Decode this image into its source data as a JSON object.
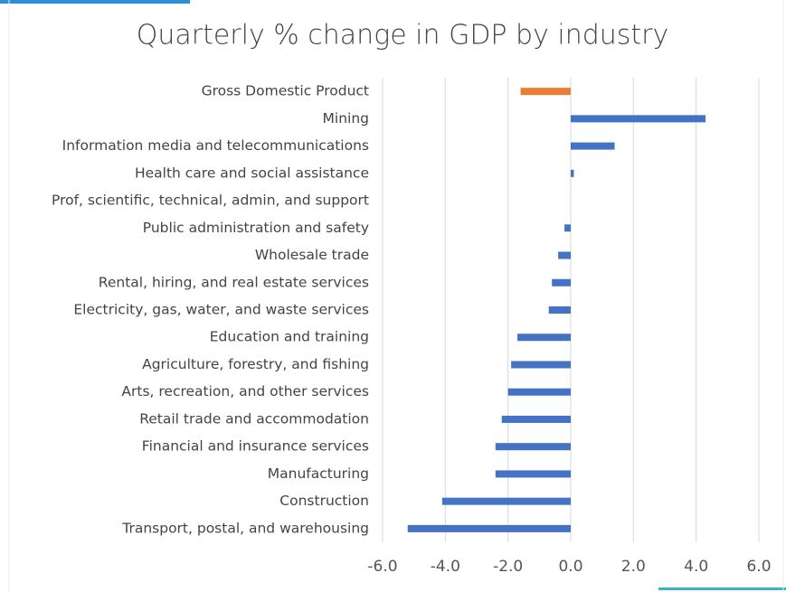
{
  "chart_data": {
    "type": "barh",
    "title": "Quarterly % change in GDP by industry",
    "categories": [
      "Gross Domestic Product",
      "Mining",
      "Information media and telecommunications",
      "Health care and social assistance",
      "Prof, scientific, technical, admin, and support",
      "Public administration and safety",
      "Wholesale trade",
      "Rental, hiring, and real estate services",
      "Electricity, gas, water, and waste services",
      "Education and training",
      "Agriculture, forestry, and fishing",
      "Arts, recreation, and other services",
      "Retail trade and accommodation",
      "Financial and insurance services",
      "Manufacturing",
      "Construction",
      "Transport, postal, and warehousing"
    ],
    "values": [
      -1.6,
      4.3,
      1.4,
      0.1,
      0.0,
      -0.2,
      -0.4,
      -0.6,
      -0.7,
      -1.7,
      -1.9,
      -2.0,
      -2.2,
      -2.4,
      -2.4,
      -4.1,
      -5.2
    ],
    "colors": [
      "#ed7d31",
      "#4472c4",
      "#4472c4",
      "#4472c4",
      "#4472c4",
      "#4472c4",
      "#4472c4",
      "#4472c4",
      "#4472c4",
      "#4472c4",
      "#4472c4",
      "#4472c4",
      "#4472c4",
      "#4472c4",
      "#4472c4",
      "#4472c4",
      "#4472c4"
    ],
    "xlim": [
      -6,
      6
    ],
    "xticks": [
      {
        "value": -6,
        "label": "-6.0"
      },
      {
        "value": -4,
        "label": "-4.0"
      },
      {
        "value": -2,
        "label": "-2.0"
      },
      {
        "value": 0,
        "label": "0.0"
      },
      {
        "value": 2,
        "label": "2.0"
      },
      {
        "value": 4,
        "label": "4.0"
      },
      {
        "value": 6,
        "label": "6.0"
      }
    ],
    "grid": true
  }
}
